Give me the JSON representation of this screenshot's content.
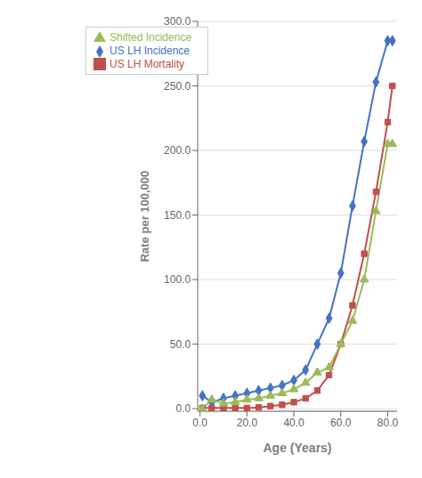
{
  "chart_data": {
    "type": "line",
    "xlabel": "Age (Years)",
    "ylabel": "Rate per 100,000",
    "x": [
      1,
      5,
      10,
      15,
      20,
      25,
      30,
      35,
      40,
      45,
      50,
      55,
      60,
      65,
      70,
      75,
      80,
      82
    ],
    "series": [
      {
        "name": "US LH Incidence",
        "color": "#4472C4",
        "marker": "diamond",
        "values": [
          10,
          5,
          8,
          10,
          12,
          14,
          16,
          18,
          22,
          30,
          50,
          70,
          105,
          157,
          207,
          253,
          285,
          285
        ]
      },
      {
        "name": "US LH Mortality",
        "color": "#C0504D",
        "marker": "square",
        "values": [
          0.5,
          0.5,
          0.5,
          0.5,
          0.5,
          1,
          2,
          3,
          5,
          8,
          14,
          26,
          50,
          80,
          120,
          168,
          222,
          250
        ]
      },
      {
        "name": "Shifted Incidence",
        "color": "#9BBB59",
        "marker": "triangle",
        "values": [
          0,
          7,
          4,
          5,
          7,
          8,
          10,
          12,
          15,
          20,
          28,
          32,
          50,
          68,
          100,
          153,
          205,
          205
        ]
      }
    ],
    "xlim": [
      -1,
      84
    ],
    "ylim": [
      -2,
      300
    ],
    "xticks": [
      {
        "value": 0,
        "label": "0.0"
      },
      {
        "value": 20,
        "label": "20.0"
      },
      {
        "value": 40,
        "label": "40.0"
      },
      {
        "value": 60,
        "label": "60.0"
      },
      {
        "value": 80,
        "label": "80.0"
      }
    ],
    "yticks": [
      {
        "value": 0,
        "label": "0.0"
      },
      {
        "value": 50,
        "label": "50.0"
      },
      {
        "value": 100,
        "label": "100.0"
      },
      {
        "value": 150,
        "label": "150.0"
      },
      {
        "value": 200,
        "label": "200.0"
      },
      {
        "value": 250,
        "label": "250.0"
      },
      {
        "value": 300,
        "label": "300.0"
      }
    ],
    "grid": "y",
    "legend": "upper left"
  }
}
